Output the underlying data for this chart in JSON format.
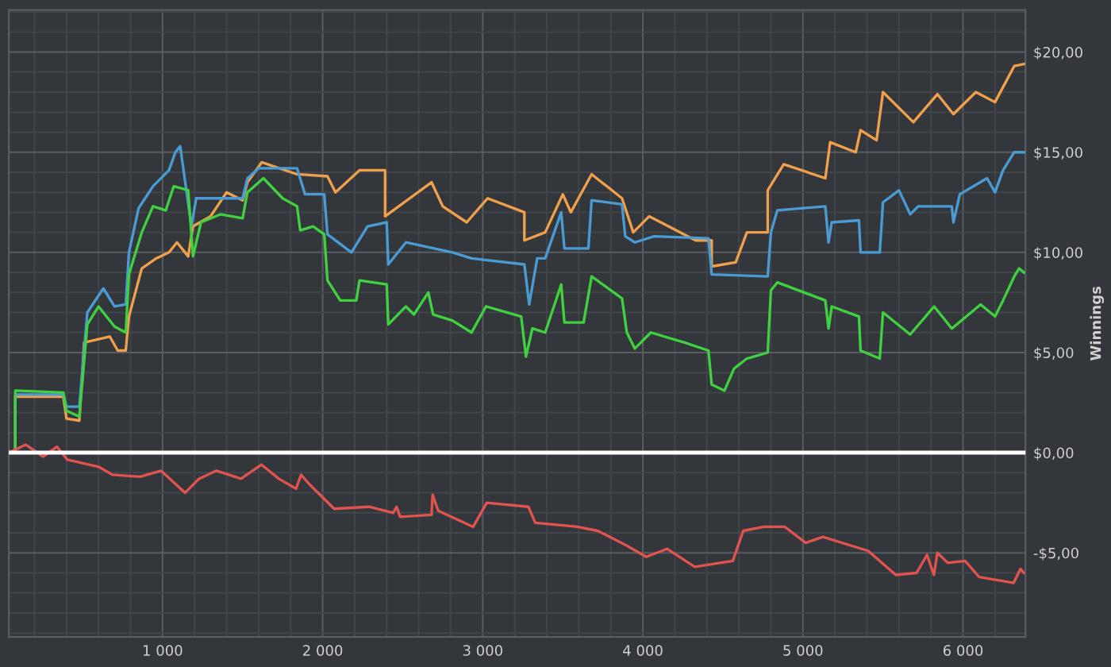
{
  "chart_data": {
    "type": "line",
    "ylabel": "Winnings",
    "xlim": [
      40,
      6390
    ],
    "ylim": [
      -9.2,
      22.1
    ],
    "xticks": [
      {
        "value": 200,
        "label": null
      },
      {
        "value": 400,
        "label": null
      },
      {
        "value": 600,
        "label": null
      },
      {
        "value": 800,
        "label": null
      },
      {
        "value": 1000,
        "label": "1 000"
      },
      {
        "value": 1200,
        "label": null
      },
      {
        "value": 1400,
        "label": null
      },
      {
        "value": 1600,
        "label": null
      },
      {
        "value": 1800,
        "label": null
      },
      {
        "value": 2000,
        "label": "2 000"
      },
      {
        "value": 2200,
        "label": null
      },
      {
        "value": 2400,
        "label": null
      },
      {
        "value": 2600,
        "label": null
      },
      {
        "value": 2800,
        "label": null
      },
      {
        "value": 3000,
        "label": "3 000"
      },
      {
        "value": 3200,
        "label": null
      },
      {
        "value": 3400,
        "label": null
      },
      {
        "value": 3600,
        "label": null
      },
      {
        "value": 3800,
        "label": null
      },
      {
        "value": 4000,
        "label": "4 000"
      },
      {
        "value": 4200,
        "label": null
      },
      {
        "value": 4400,
        "label": null
      },
      {
        "value": 4600,
        "label": null
      },
      {
        "value": 4800,
        "label": null
      },
      {
        "value": 5000,
        "label": "5 000"
      },
      {
        "value": 5200,
        "label": null
      },
      {
        "value": 5400,
        "label": null
      },
      {
        "value": 5600,
        "label": null
      },
      {
        "value": 5800,
        "label": null
      },
      {
        "value": 6000,
        "label": "6 000"
      },
      {
        "value": 6200,
        "label": null
      }
    ],
    "yticks": [
      {
        "value": -9,
        "label": null
      },
      {
        "value": -8,
        "label": null
      },
      {
        "value": -7,
        "label": null
      },
      {
        "value": -6,
        "label": null
      },
      {
        "value": -5,
        "label": "-$5,00"
      },
      {
        "value": -4,
        "label": null
      },
      {
        "value": -3,
        "label": null
      },
      {
        "value": -2,
        "label": null
      },
      {
        "value": -1,
        "label": null
      },
      {
        "value": 0,
        "label": "$0,00"
      },
      {
        "value": 1,
        "label": null
      },
      {
        "value": 2,
        "label": null
      },
      {
        "value": 3,
        "label": null
      },
      {
        "value": 4,
        "label": null
      },
      {
        "value": 5,
        "label": "$5,00"
      },
      {
        "value": 6,
        "label": null
      },
      {
        "value": 7,
        "label": null
      },
      {
        "value": 8,
        "label": null
      },
      {
        "value": 9,
        "label": null
      },
      {
        "value": 10,
        "label": "$10,00"
      },
      {
        "value": 11,
        "label": null
      },
      {
        "value": 12,
        "label": null
      },
      {
        "value": 13,
        "label": null
      },
      {
        "value": 14,
        "label": null
      },
      {
        "value": 15,
        "label": "$15,00"
      },
      {
        "value": 16,
        "label": null
      },
      {
        "value": 17,
        "label": null
      },
      {
        "value": 18,
        "label": null
      },
      {
        "value": 19,
        "label": null
      },
      {
        "value": 20,
        "label": "$20,00"
      },
      {
        "value": 21,
        "label": null
      },
      {
        "value": 22,
        "label": null
      }
    ],
    "grid": true,
    "ref_lines": [
      {
        "axis": "y",
        "value": 0,
        "label": null,
        "color": "#ffffff"
      }
    ],
    "series": [
      {
        "color": "#f0a04b",
        "x": [
          40,
          80,
          80,
          380,
          400,
          480,
          510,
          670,
          720,
          770,
          790,
          870,
          960,
          1040,
          1090,
          1160,
          1190,
          1300,
          1400,
          1500,
          1530,
          1620,
          1840,
          2030,
          2080,
          2230,
          2390,
          2390,
          2680,
          2750,
          2900,
          3030,
          3260,
          3260,
          3390,
          3500,
          3550,
          3680,
          3870,
          3940,
          4040,
          4330,
          4430,
          4430,
          4580,
          4650,
          4780,
          4780,
          4880,
          5140,
          5170,
          5330,
          5360,
          5460,
          5500,
          5690,
          5840,
          5940,
          6080,
          6200,
          6320,
          6380
        ],
        "values": [
          0,
          0,
          2.8,
          2.8,
          1.7,
          1.6,
          5.5,
          5.8,
          5.1,
          5.1,
          6.8,
          9.2,
          9.7,
          10.0,
          10.5,
          9.8,
          11.3,
          11.8,
          13.0,
          12.6,
          13.5,
          14.5,
          13.9,
          13.8,
          13.0,
          14.1,
          14.1,
          11.8,
          13.5,
          12.3,
          11.5,
          12.7,
          12.0,
          10.6,
          11.0,
          12.9,
          12.0,
          13.9,
          12.7,
          11.0,
          11.8,
          10.6,
          10.6,
          9.3,
          9.5,
          11.0,
          11.0,
          13.1,
          14.4,
          13.7,
          15.5,
          15.0,
          16.1,
          15.6,
          18.0,
          16.5,
          17.9,
          16.9,
          18.0,
          17.5,
          19.3,
          19.4
        ]
      },
      {
        "color": "#4a9bd4",
        "x": [
          40,
          80,
          80,
          380,
          400,
          480,
          530,
          630,
          700,
          770,
          790,
          850,
          940,
          1040,
          1080,
          1110,
          1180,
          1210,
          1500,
          1530,
          1600,
          1840,
          1890,
          2010,
          2030,
          2180,
          2280,
          2400,
          2410,
          2520,
          2810,
          2930,
          3260,
          3290,
          3340,
          3390,
          3490,
          3510,
          3660,
          3680,
          3870,
          3890,
          3950,
          4070,
          4410,
          4430,
          4780,
          4800,
          4840,
          5140,
          5160,
          5180,
          5350,
          5360,
          5480,
          5500,
          5600,
          5670,
          5720,
          5930,
          5940,
          5980,
          6150,
          6200,
          6250,
          6320,
          6380
        ],
        "values": [
          0,
          0,
          2.9,
          2.9,
          2.3,
          2.3,
          7.0,
          8.2,
          7.3,
          7.4,
          10.0,
          12.2,
          13.3,
          14.1,
          15.0,
          15.3,
          11.3,
          12.7,
          12.7,
          13.7,
          14.2,
          14.2,
          12.9,
          12.9,
          10.9,
          10.0,
          11.3,
          11.5,
          9.4,
          10.5,
          10.0,
          9.7,
          9.4,
          7.4,
          9.7,
          9.7,
          12.0,
          10.2,
          10.2,
          12.6,
          12.4,
          10.8,
          10.5,
          10.8,
          10.7,
          8.9,
          8.8,
          11.0,
          12.1,
          12.3,
          10.5,
          11.5,
          11.6,
          10.0,
          10.0,
          12.5,
          13.1,
          11.9,
          12.3,
          12.3,
          11.5,
          12.9,
          13.7,
          13.0,
          14.1,
          15.0,
          15.0
        ]
      },
      {
        "color": "#3fd13f",
        "x": [
          40,
          80,
          80,
          380,
          400,
          480,
          530,
          600,
          700,
          770,
          790,
          870,
          940,
          1020,
          1070,
          1160,
          1190,
          1240,
          1360,
          1500,
          1530,
          1630,
          1750,
          1840,
          1860,
          1940,
          2010,
          2030,
          2110,
          2210,
          2230,
          2400,
          2410,
          2520,
          2570,
          2660,
          2690,
          2810,
          2930,
          3020,
          3240,
          3270,
          3310,
          3390,
          3490,
          3510,
          3630,
          3680,
          3870,
          3900,
          3950,
          4050,
          4260,
          4410,
          4430,
          4510,
          4570,
          4650,
          4780,
          4800,
          4840,
          5140,
          5160,
          5180,
          5350,
          5360,
          5480,
          5500,
          5670,
          5820,
          5930,
          6110,
          6200,
          6250,
          6320,
          6350,
          6380
        ],
        "values": [
          0,
          0,
          3.1,
          3.0,
          2.1,
          1.8,
          6.4,
          7.3,
          6.3,
          6.0,
          8.9,
          11.0,
          12.3,
          12.1,
          13.3,
          13.1,
          9.8,
          11.5,
          11.9,
          11.7,
          13.0,
          13.7,
          12.7,
          12.3,
          11.1,
          11.3,
          10.9,
          8.6,
          7.6,
          7.6,
          8.6,
          8.4,
          6.4,
          7.3,
          6.9,
          8.0,
          6.9,
          6.6,
          6.0,
          7.3,
          6.8,
          4.8,
          6.2,
          6.0,
          8.4,
          6.5,
          6.5,
          8.8,
          7.7,
          6.0,
          5.2,
          6.0,
          5.5,
          5.1,
          3.4,
          3.1,
          4.2,
          4.7,
          5.0,
          8.1,
          8.5,
          7.6,
          6.2,
          7.3,
          6.8,
          5.1,
          4.7,
          7.0,
          5.9,
          7.3,
          6.2,
          7.4,
          6.8,
          7.6,
          8.8,
          9.2,
          9.0
        ]
      },
      {
        "color": "#e0534f",
        "x": [
          40,
          146,
          254,
          340,
          405,
          600,
          687,
          860,
          990,
          1140,
          1228,
          1337,
          1490,
          1618,
          1726,
          1834,
          1865,
          1920,
          2072,
          2289,
          2440,
          2462,
          2484,
          2680,
          2687,
          2722,
          2940,
          3025,
          3285,
          3328,
          3590,
          3718,
          3891,
          4021,
          4151,
          4324,
          4562,
          4627,
          4757,
          4887,
          5017,
          5125,
          5407,
          5580,
          5710,
          5775,
          5818,
          5840,
          5905,
          6013,
          6100,
          6316,
          6359,
          6380
        ],
        "values": [
          0,
          0.4,
          -0.2,
          0.3,
          -0.35,
          -0.7,
          -1.1,
          -1.2,
          -0.9,
          -2.0,
          -1.3,
          -0.9,
          -1.3,
          -0.6,
          -1.3,
          -1.8,
          -1.1,
          -1.6,
          -2.8,
          -2.7,
          -3.0,
          -2.7,
          -3.2,
          -3.1,
          -2.1,
          -2.9,
          -3.7,
          -2.5,
          -2.7,
          -3.5,
          -3.7,
          -3.9,
          -4.6,
          -5.2,
          -4.8,
          -5.7,
          -5.4,
          -3.9,
          -3.7,
          -3.7,
          -4.5,
          -4.2,
          -4.9,
          -6.1,
          -6.0,
          -5.1,
          -6.1,
          -5.0,
          -5.5,
          -5.4,
          -6.2,
          -6.5,
          -5.8,
          -6.0
        ]
      }
    ]
  }
}
